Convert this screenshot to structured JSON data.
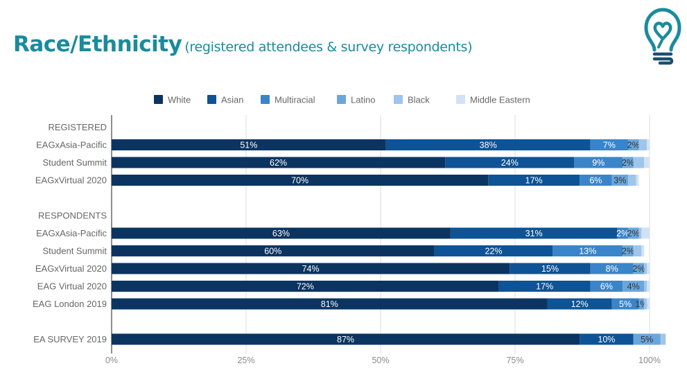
{
  "header": {
    "title": "Race/Ethnicity",
    "subtitle": "(registered attendees & survey respondents)",
    "logo_icon": "lightbulb-heart-icon",
    "accent_color": "#1a8b9d"
  },
  "chart_data": {
    "type": "bar",
    "orientation": "horizontal",
    "stacked": "percent",
    "title": "",
    "xlabel": "",
    "ylabel": "",
    "xlim": [
      0,
      100
    ],
    "x_ticks": [
      "0%",
      "25%",
      "50%",
      "75%",
      "100%"
    ],
    "grid": true,
    "legend_position": "top",
    "series_names": [
      "White",
      "Asian",
      "Multiracial",
      "Latino",
      "Black",
      "Middle Eastern"
    ],
    "series_colors": [
      "#0b3461",
      "#0e5395",
      "#3a85c9",
      "#6aa6db",
      "#9fc5ea",
      "#d1e2f5"
    ],
    "label_colors": [
      "#ffffff",
      "#ffffff",
      "#ffffff",
      "#333333",
      "#333333",
      "#333333"
    ],
    "rows": [
      {
        "group_header": "REGISTERED"
      },
      {
        "category": "EAGxAsia-Pacific",
        "values": [
          51,
          38,
          7,
          2,
          1.5,
          0.5
        ],
        "labels": [
          "51%",
          "38%",
          "7%",
          "2%",
          "",
          ""
        ]
      },
      {
        "category": "Student Summit",
        "values": [
          62,
          24,
          9,
          2,
          2,
          1
        ],
        "labels": [
          "62%",
          "24%",
          "9%",
          "2%",
          "",
          ""
        ]
      },
      {
        "category": "EAGxVirtual 2020",
        "values": [
          70,
          17,
          6,
          3,
          1.5,
          0.5
        ],
        "labels": [
          "70%",
          "17%",
          "6%",
          "3%",
          "",
          ""
        ]
      },
      {
        "spacer": true
      },
      {
        "group_header": "RESPONDENTS"
      },
      {
        "category": "EAGxAsia-Pacific",
        "values": [
          63,
          31,
          2,
          2,
          0.5,
          1.5
        ],
        "labels": [
          "63%",
          "31%",
          "2%",
          "2%",
          "",
          ""
        ]
      },
      {
        "category": "Student Summit",
        "values": [
          60,
          22,
          13,
          2,
          1.5,
          0.5
        ],
        "labels": [
          "60%",
          "22%",
          "13%",
          "2%",
          "",
          ""
        ]
      },
      {
        "category": "EAGxVirtual 2020",
        "values": [
          74,
          15,
          8,
          2,
          0.5,
          0.5
        ],
        "labels": [
          "74%",
          "15%",
          "8%",
          "2%",
          "",
          ""
        ]
      },
      {
        "category": "EAG Virtual 2020",
        "values": [
          72,
          17,
          6,
          4,
          0.5,
          0.5
        ],
        "labels": [
          "72%",
          "17%",
          "6%",
          "4%",
          "",
          ""
        ]
      },
      {
        "category": "EAG London 2019",
        "values": [
          81,
          12,
          5,
          1,
          0.5,
          0.5
        ],
        "labels": [
          "81%",
          "12%",
          "5%",
          "1%",
          "",
          ""
        ]
      },
      {
        "spacer": true
      },
      {
        "category": "EA SURVEY 2019",
        "values": [
          87,
          10,
          0,
          5,
          1,
          0
        ],
        "labels": [
          "87%",
          "10%",
          "",
          "5%",
          "",
          ""
        ]
      }
    ]
  }
}
